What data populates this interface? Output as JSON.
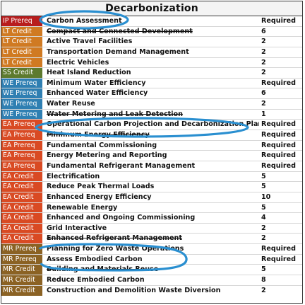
{
  "table": {
    "title": "Decarbonization",
    "colors": {
      "IP": "#b81d1d",
      "LT": "#d07a22",
      "SS": "#5d7a2e",
      "WE": "#2f7fb2",
      "EA": "#d94a23",
      "MR": "#8b6224",
      "highlight": "#2a8fd0"
    },
    "rows": [
      {
        "cat": "IP Prereq",
        "group": "IP",
        "name": "Carbon Assessment",
        "pts": "Required"
      },
      {
        "cat": "LT Credit",
        "group": "LT",
        "name": "Compact and Connected Development",
        "pts": "6"
      },
      {
        "cat": "LT Credit",
        "group": "LT",
        "name": "Active Travel Facilities",
        "pts": "2"
      },
      {
        "cat": "LT Credit",
        "group": "LT",
        "name": "Transportation Demand Management",
        "pts": "2"
      },
      {
        "cat": "LT Credit",
        "group": "LT",
        "name": "Electric Vehicles",
        "pts": "2"
      },
      {
        "cat": "SS Credit",
        "group": "SS",
        "name": "Heat Island Reduction",
        "pts": "2"
      },
      {
        "cat": "WE Prereq",
        "group": "WE",
        "name": "Minimum Water Efficiency",
        "pts": "Required"
      },
      {
        "cat": "WE Prereq",
        "group": "WE",
        "name": "Enhanced Water Efficiency",
        "pts": "6"
      },
      {
        "cat": "WE Prereq",
        "group": "WE",
        "name": "Water Reuse",
        "pts": "2"
      },
      {
        "cat": "WE Prereq",
        "group": "WE",
        "name": "Water Metering and Leak Detection",
        "pts": "1"
      },
      {
        "cat": "EA Prereq",
        "group": "EA",
        "name": "Operational Carbon Projection and Decarbonization Plan",
        "pts": "Required"
      },
      {
        "cat": "EA Prereq",
        "group": "EA",
        "name": "Minimum Energy Efficiency",
        "pts": "Required"
      },
      {
        "cat": "EA Prereq",
        "group": "EA",
        "name": "Fundamental Commissioning",
        "pts": "Required"
      },
      {
        "cat": "EA Prereq",
        "group": "EA",
        "name": "Energy Metering and Reporting",
        "pts": "Required"
      },
      {
        "cat": "EA Prereq",
        "group": "EA",
        "name": "Fundamental Refrigerant Management",
        "pts": "Required"
      },
      {
        "cat": "EA Credit",
        "group": "EA",
        "name": "Electrification",
        "pts": "5"
      },
      {
        "cat": "EA Credit",
        "group": "EA",
        "name": "Reduce Peak Thermal Loads",
        "pts": "5"
      },
      {
        "cat": "EA Credit",
        "group": "EA",
        "name": "Enhanced Energy Efficiency",
        "pts": "10"
      },
      {
        "cat": "EA Credit",
        "group": "EA",
        "name": "Renewable Energy",
        "pts": "5"
      },
      {
        "cat": "EA Credit",
        "group": "EA",
        "name": "Enhanced and Ongoing Commissioning",
        "pts": "4"
      },
      {
        "cat": "EA Credit",
        "group": "EA",
        "name": "Grid Interactive",
        "pts": "2"
      },
      {
        "cat": "EA Credit",
        "group": "EA",
        "name": "Enhanced Refrigerant Management",
        "pts": "2"
      },
      {
        "cat": "MR Prereq",
        "group": "MR",
        "name": "Planning for Zero Waste Operations",
        "pts": "Required"
      },
      {
        "cat": "MR Prereq",
        "group": "MR",
        "name": "Assess Embodied Carbon",
        "pts": "Required"
      },
      {
        "cat": "MR Credit",
        "group": "MR",
        "name": "Building and Materials Reuse",
        "pts": "5"
      },
      {
        "cat": "MR Credit",
        "group": "MR",
        "name": "Reduce Embodied Carbon",
        "pts": "8"
      },
      {
        "cat": "MR Credit",
        "group": "MR",
        "name": "Construction and Demolition Waste Diversion",
        "pts": "2"
      }
    ]
  }
}
